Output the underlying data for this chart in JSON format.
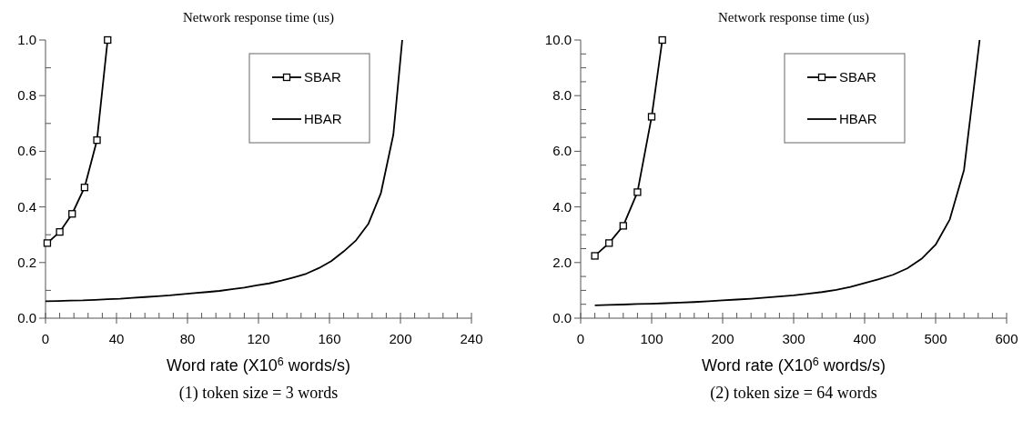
{
  "chart_data": [
    {
      "type": "line",
      "title": "Network response time (us)",
      "xlabel": "Word rate (X10$^{6}$ words/s)",
      "annotations": [
        "(1) token size = 3 words"
      ],
      "xlim": [
        0,
        240
      ],
      "xticks": [
        0,
        {
          "value": 8,
          "label": null
        },
        {
          "value": 16,
          "label": null
        },
        {
          "value": 24,
          "label": null
        },
        {
          "value": 32,
          "label": null
        },
        40,
        {
          "value": 48,
          "label": null
        },
        {
          "value": 56,
          "label": null
        },
        {
          "value": 64,
          "label": null
        },
        {
          "value": 72,
          "label": null
        },
        80,
        {
          "value": 88,
          "label": null
        },
        {
          "value": 96,
          "label": null
        },
        {
          "value": 104,
          "label": null
        },
        {
          "value": 112,
          "label": null
        },
        120,
        {
          "value": 128,
          "label": null
        },
        {
          "value": 136,
          "label": null
        },
        {
          "value": 144,
          "label": null
        },
        {
          "value": 152,
          "label": null
        },
        160,
        {
          "value": 168,
          "label": null
        },
        {
          "value": 176,
          "label": null
        },
        {
          "value": 184,
          "label": null
        },
        {
          "value": 192,
          "label": null
        },
        200,
        {
          "value": 208,
          "label": null
        },
        {
          "value": 216,
          "label": null
        },
        {
          "value": 224,
          "label": null
        },
        {
          "value": 232,
          "label": null
        },
        240
      ],
      "ylim": [
        0,
        1
      ],
      "yticks": [
        {
          "value": 0,
          "label": "0.0"
        },
        {
          "value": 0.1,
          "label": null
        },
        {
          "value": 0.2,
          "label": "0.2"
        },
        {
          "value": 0.3,
          "label": null
        },
        {
          "value": 0.4,
          "label": "0.4"
        },
        {
          "value": 0.5,
          "label": null
        },
        {
          "value": 0.6,
          "label": "0.6"
        },
        {
          "value": 0.7,
          "label": null
        },
        {
          "value": 0.8,
          "label": "0.8"
        },
        {
          "value": 0.9,
          "label": null
        },
        {
          "value": 1,
          "label": "1.0"
        }
      ],
      "legend": "top",
      "grid": false,
      "line_style": "solid",
      "series": [
        {
          "name": "SBAR",
          "color": "#000000",
          "marker": "square",
          "x": [
            1,
            8,
            15,
            22,
            29,
            35
          ],
          "values": [
            0.27,
            0.31,
            0.375,
            0.47,
            0.64,
            1.0
          ]
        },
        {
          "name": "HBAR",
          "color": "#000000",
          "marker": "none",
          "x": [
            0,
            7,
            14,
            21,
            28,
            35,
            42,
            49,
            56,
            63,
            70,
            77,
            84,
            91,
            98,
            105,
            112,
            119,
            126,
            133,
            140,
            147,
            154,
            161,
            168,
            175,
            182,
            189,
            196,
            201
          ],
          "values": [
            0.061,
            0.062,
            0.063,
            0.064,
            0.066,
            0.068,
            0.07,
            0.073,
            0.076,
            0.079,
            0.082,
            0.086,
            0.09,
            0.094,
            0.098,
            0.104,
            0.11,
            0.118,
            0.125,
            0.135,
            0.147,
            0.16,
            0.18,
            0.205,
            0.24,
            0.28,
            0.34,
            0.45,
            0.66,
            1.0
          ]
        }
      ]
    },
    {
      "type": "line",
      "title": "Network response time (us)",
      "xlabel": "Word rate (X10$^{6}$ words/s)",
      "annotations": [
        "(2) token size = 64 words"
      ],
      "xlim": [
        0,
        600
      ],
      "xticks": [
        0,
        {
          "value": 20,
          "label": null
        },
        {
          "value": 40,
          "label": null
        },
        {
          "value": 60,
          "label": null
        },
        {
          "value": 80,
          "label": null
        },
        100,
        {
          "value": 120,
          "label": null
        },
        {
          "value": 140,
          "label": null
        },
        {
          "value": 160,
          "label": null
        },
        {
          "value": 180,
          "label": null
        },
        200,
        {
          "value": 220,
          "label": null
        },
        {
          "value": 240,
          "label": null
        },
        {
          "value": 260,
          "label": null
        },
        {
          "value": 280,
          "label": null
        },
        300,
        {
          "value": 320,
          "label": null
        },
        {
          "value": 340,
          "label": null
        },
        {
          "value": 360,
          "label": null
        },
        {
          "value": 380,
          "label": null
        },
        400,
        {
          "value": 420,
          "label": null
        },
        {
          "value": 440,
          "label": null
        },
        {
          "value": 460,
          "label": null
        },
        {
          "value": 480,
          "label": null
        },
        500,
        {
          "value": 520,
          "label": null
        },
        {
          "value": 540,
          "label": null
        },
        {
          "value": 560,
          "label": null
        },
        {
          "value": 580,
          "label": null
        },
        600
      ],
      "ylim": [
        0,
        10
      ],
      "yticks": [
        {
          "value": 0,
          "label": "0.0"
        },
        {
          "value": 0.5,
          "label": null
        },
        {
          "value": 1,
          "label": null
        },
        {
          "value": 1.5,
          "label": null
        },
        {
          "value": 2,
          "label": "2.0"
        },
        {
          "value": 2.5,
          "label": null
        },
        {
          "value": 3,
          "label": null
        },
        {
          "value": 3.5,
          "label": null
        },
        {
          "value": 4,
          "label": "4.0"
        },
        {
          "value": 4.5,
          "label": null
        },
        {
          "value": 5,
          "label": null
        },
        {
          "value": 5.5,
          "label": null
        },
        {
          "value": 6,
          "label": "6.0"
        },
        {
          "value": 6.5,
          "label": null
        },
        {
          "value": 7,
          "label": null
        },
        {
          "value": 7.5,
          "label": null
        },
        {
          "value": 8,
          "label": "8.0"
        },
        {
          "value": 8.5,
          "label": null
        },
        {
          "value": 9,
          "label": null
        },
        {
          "value": 9.5,
          "label": null
        },
        {
          "value": 10,
          "label": "10.0"
        }
      ],
      "legend": "top",
      "grid": false,
      "line_style": "solid",
      "series": [
        {
          "name": "SBAR",
          "color": "#000000",
          "marker": "square",
          "x": [
            20,
            40,
            60,
            80,
            100,
            115
          ],
          "values": [
            2.24,
            2.7,
            3.32,
            4.53,
            7.24,
            10.0
          ]
        },
        {
          "name": "HBAR",
          "color": "#000000",
          "marker": "none",
          "x": [
            20,
            40,
            60,
            80,
            100,
            120,
            140,
            160,
            180,
            200,
            220,
            240,
            260,
            280,
            300,
            320,
            340,
            360,
            380,
            400,
            420,
            440,
            460,
            480,
            500,
            520,
            540,
            562
          ],
          "values": [
            0.46,
            0.48,
            0.49,
            0.51,
            0.52,
            0.54,
            0.56,
            0.58,
            0.61,
            0.64,
            0.67,
            0.7,
            0.74,
            0.78,
            0.82,
            0.88,
            0.94,
            1.02,
            1.12,
            1.26,
            1.4,
            1.56,
            1.79,
            2.13,
            2.64,
            3.55,
            5.33,
            10.0
          ]
        }
      ]
    }
  ]
}
